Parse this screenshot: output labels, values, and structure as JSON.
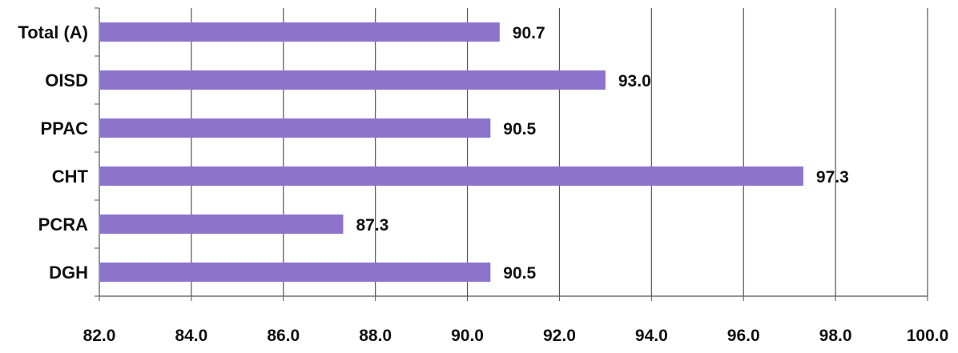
{
  "chart_data": {
    "type": "bar",
    "orientation": "horizontal",
    "categories": [
      "Total (A)",
      "OISD",
      "PPAC",
      "CHT",
      "PCRA",
      "DGH"
    ],
    "values": [
      90.7,
      93.0,
      90.5,
      97.3,
      87.3,
      90.5
    ],
    "value_labels": [
      "90.7",
      "93.0",
      "90.5",
      "97.3",
      "87.3",
      "90.5"
    ],
    "xlim": [
      82.0,
      100.0
    ],
    "xticks": [
      "82.0",
      "84.0",
      "86.0",
      "88.0",
      "90.0",
      "92.0",
      "94.0",
      "96.0",
      "98.0",
      "100.0"
    ],
    "grid": true,
    "legend": "none",
    "title": "",
    "xlabel": "",
    "ylabel": "",
    "colors": {
      "bar": "#8d73cc",
      "grid": "#6b4a56",
      "axis": "#555555",
      "text": "#111111"
    }
  }
}
